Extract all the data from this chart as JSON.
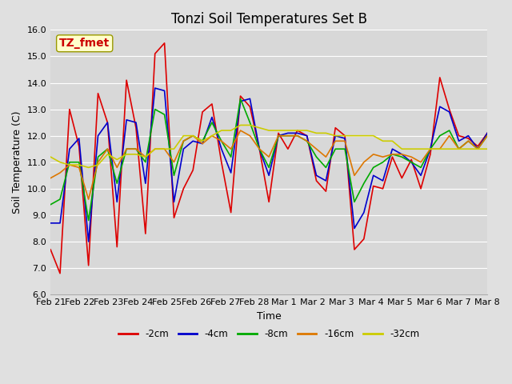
{
  "title": "Tonzi Soil Temperatures Set B",
  "xlabel": "Time",
  "ylabel": "Soil Temperature (C)",
  "ylim": [
    6.0,
    16.0
  ],
  "yticks": [
    6.0,
    7.0,
    8.0,
    9.0,
    10.0,
    11.0,
    12.0,
    13.0,
    14.0,
    15.0,
    16.0
  ],
  "xtick_labels": [
    "Feb 21",
    "Feb 22",
    "Feb 23",
    "Feb 24",
    "Feb 25",
    "Feb 26",
    "Feb 27",
    "Feb 28",
    "Mar 1",
    "Mar 2",
    "Mar 3",
    "Mar 4",
    "Mar 5",
    "Mar 6",
    "Mar 7",
    "Mar 8"
  ],
  "annotation_label": "TZ_fmet",
  "annotation_color": "#cc0000",
  "annotation_bg": "#ffffcc",
  "annotation_edge": "#999900",
  "series": {
    "-2cm": {
      "color": "#dd0000",
      "linewidth": 1.2,
      "values": [
        7.7,
        6.8,
        13.0,
        11.6,
        7.1,
        13.6,
        12.5,
        7.8,
        14.1,
        12.3,
        8.3,
        15.1,
        15.5,
        8.9,
        10.0,
        10.7,
        12.9,
        13.2,
        11.0,
        9.1,
        13.5,
        13.1,
        11.5,
        9.5,
        12.1,
        11.5,
        12.2,
        12.0,
        10.3,
        9.9,
        12.3,
        12.0,
        7.7,
        8.1,
        10.1,
        10.0,
        11.2,
        10.4,
        11.1,
        10.0,
        11.3,
        14.2,
        13.0,
        12.0,
        11.9,
        11.6,
        12.1
      ]
    },
    "-4cm": {
      "color": "#0000cc",
      "linewidth": 1.2,
      "values": [
        8.7,
        8.7,
        11.5,
        11.9,
        8.0,
        12.0,
        12.5,
        9.5,
        12.6,
        12.5,
        10.2,
        13.8,
        13.7,
        9.5,
        11.5,
        11.8,
        11.7,
        12.7,
        11.5,
        10.6,
        13.3,
        13.4,
        11.5,
        10.5,
        12.0,
        12.1,
        12.1,
        12.0,
        10.5,
        10.3,
        12.0,
        11.9,
        8.5,
        9.1,
        10.5,
        10.3,
        11.5,
        11.3,
        11.0,
        10.5,
        11.5,
        13.1,
        12.9,
        11.8,
        12.0,
        11.5,
        12.1
      ]
    },
    "-8cm": {
      "color": "#00aa00",
      "linewidth": 1.2,
      "values": [
        9.4,
        9.6,
        11.0,
        11.0,
        8.8,
        11.2,
        11.5,
        10.2,
        11.5,
        11.5,
        11.0,
        13.0,
        12.8,
        10.5,
        11.8,
        12.0,
        11.8,
        12.5,
        11.8,
        11.2,
        13.4,
        12.5,
        11.5,
        10.8,
        12.0,
        12.0,
        12.0,
        11.8,
        11.2,
        10.8,
        11.5,
        11.5,
        9.5,
        10.2,
        10.8,
        11.0,
        11.3,
        11.2,
        11.0,
        10.8,
        11.5,
        12.0,
        12.2,
        11.5,
        11.8,
        11.5,
        12.0
      ]
    },
    "-16cm": {
      "color": "#dd7700",
      "linewidth": 1.2,
      "values": [
        10.4,
        10.6,
        10.9,
        10.8,
        9.6,
        11.0,
        11.5,
        10.8,
        11.5,
        11.5,
        11.2,
        11.5,
        11.5,
        11.0,
        11.8,
        12.0,
        11.7,
        12.0,
        11.8,
        11.5,
        12.2,
        12.0,
        11.5,
        11.2,
        12.0,
        12.0,
        12.0,
        11.8,
        11.5,
        11.2,
        11.8,
        11.8,
        10.5,
        11.0,
        11.3,
        11.2,
        11.3,
        11.3,
        11.2,
        11.0,
        11.5,
        11.5,
        12.0,
        11.5,
        11.8,
        11.5,
        12.0
      ]
    },
    "-32cm": {
      "color": "#cccc00",
      "linewidth": 1.2,
      "values": [
        11.2,
        11.0,
        10.9,
        10.9,
        10.8,
        10.9,
        11.3,
        11.1,
        11.3,
        11.3,
        11.2,
        11.5,
        11.5,
        11.5,
        12.0,
        12.0,
        11.8,
        12.0,
        12.2,
        12.2,
        12.4,
        12.4,
        12.3,
        12.2,
        12.2,
        12.2,
        12.2,
        12.2,
        12.1,
        12.1,
        12.0,
        12.0,
        12.0,
        12.0,
        12.0,
        11.8,
        11.8,
        11.5,
        11.5,
        11.5,
        11.5,
        11.5,
        11.5,
        11.5,
        11.5,
        11.5,
        11.5
      ]
    }
  },
  "fig_bg_color": "#e0e0e0",
  "plot_bg_color": "#d8d8d8",
  "grid_color": "#ffffff",
  "title_fontsize": 12,
  "axis_label_fontsize": 9,
  "tick_fontsize": 8,
  "figsize": [
    6.4,
    4.8
  ],
  "dpi": 100
}
